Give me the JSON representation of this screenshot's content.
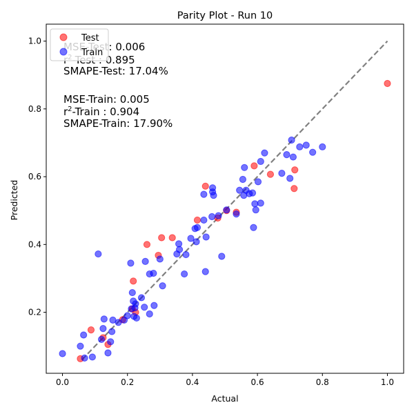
{
  "chart_data": {
    "type": "scatter",
    "title": "Parity Plot - Run 10",
    "xlabel": "Actual",
    "ylabel": "Predicted",
    "xlim": [
      -0.05,
      1.05
    ],
    "ylim": [
      0.02,
      1.05
    ],
    "x_ticks": [
      0.0,
      0.2,
      0.4,
      0.6,
      0.8,
      1.0
    ],
    "x_tick_labels": [
      "0.0",
      "0.2",
      "0.4",
      "0.6",
      "0.8",
      "1.0"
    ],
    "y_ticks": [
      0.2,
      0.4,
      0.6,
      0.8,
      1.0
    ],
    "y_tick_labels": [
      "0.2",
      "0.4",
      "0.6",
      "0.8",
      "1.0"
    ],
    "grid": false,
    "legend_position": "top-left",
    "reference_line": {
      "style": "dashed",
      "color": "#808080",
      "from": [
        0.06,
        0.06
      ],
      "to": [
        1.0,
        1.0
      ]
    },
    "annotations": [
      {
        "prefix": "MSE-Test: ",
        "value": "0.006"
      },
      {
        "prefix": "r",
        "sup": "2",
        "suffix": "-Test : ",
        "value": "0.895"
      },
      {
        "prefix": "SMAPE-Test: ",
        "value": "17.04%"
      },
      {
        "prefix": "MSE-Train: ",
        "value": "0.005"
      },
      {
        "prefix": "r",
        "sup": "2",
        "suffix": "-Train : ",
        "value": "0.904"
      },
      {
        "prefix": "SMAPE-Train: ",
        "value": "17.90%"
      }
    ],
    "series": [
      {
        "name": "Test",
        "color": "#ff0000",
        "points": [
          [
            0.055,
            0.063
          ],
          [
            0.088,
            0.148
          ],
          [
            0.125,
            0.125
          ],
          [
            0.14,
            0.105
          ],
          [
            0.185,
            0.178
          ],
          [
            0.215,
            0.21
          ],
          [
            0.218,
            0.292
          ],
          [
            0.225,
            0.2
          ],
          [
            0.26,
            0.4
          ],
          [
            0.295,
            0.368
          ],
          [
            0.305,
            0.42
          ],
          [
            0.338,
            0.42
          ],
          [
            0.415,
            0.472
          ],
          [
            0.44,
            0.572
          ],
          [
            0.478,
            0.478
          ],
          [
            0.505,
            0.5
          ],
          [
            0.535,
            0.495
          ],
          [
            0.59,
            0.632
          ],
          [
            0.64,
            0.607
          ],
          [
            0.713,
            0.565
          ],
          [
            0.715,
            0.62
          ],
          [
            1.0,
            0.875
          ]
        ]
      },
      {
        "name": "Train",
        "color": "#0000ff",
        "points": [
          [
            0.0,
            0.078
          ],
          [
            0.055,
            0.1
          ],
          [
            0.065,
            0.133
          ],
          [
            0.068,
            0.065
          ],
          [
            0.092,
            0.068
          ],
          [
            0.11,
            0.372
          ],
          [
            0.12,
            0.12
          ],
          [
            0.125,
            0.152
          ],
          [
            0.128,
            0.18
          ],
          [
            0.14,
            0.08
          ],
          [
            0.148,
            0.113
          ],
          [
            0.152,
            0.143
          ],
          [
            0.155,
            0.177
          ],
          [
            0.172,
            0.17
          ],
          [
            0.19,
            0.177
          ],
          [
            0.2,
            0.19
          ],
          [
            0.21,
            0.345
          ],
          [
            0.212,
            0.21
          ],
          [
            0.215,
            0.258
          ],
          [
            0.218,
            0.233
          ],
          [
            0.22,
            0.188
          ],
          [
            0.223,
            0.213
          ],
          [
            0.225,
            0.225
          ],
          [
            0.228,
            0.183
          ],
          [
            0.243,
            0.243
          ],
          [
            0.252,
            0.215
          ],
          [
            0.255,
            0.35
          ],
          [
            0.268,
            0.313
          ],
          [
            0.268,
            0.195
          ],
          [
            0.28,
            0.315
          ],
          [
            0.282,
            0.22
          ],
          [
            0.3,
            0.357
          ],
          [
            0.308,
            0.278
          ],
          [
            0.352,
            0.372
          ],
          [
            0.358,
            0.402
          ],
          [
            0.36,
            0.385
          ],
          [
            0.375,
            0.313
          ],
          [
            0.38,
            0.37
          ],
          [
            0.395,
            0.418
          ],
          [
            0.408,
            0.447
          ],
          [
            0.412,
            0.408
          ],
          [
            0.415,
            0.45
          ],
          [
            0.435,
            0.472
          ],
          [
            0.435,
            0.548
          ],
          [
            0.44,
            0.32
          ],
          [
            0.442,
            0.422
          ],
          [
            0.46,
            0.482
          ],
          [
            0.462,
            0.567
          ],
          [
            0.462,
            0.555
          ],
          [
            0.465,
            0.545
          ],
          [
            0.48,
            0.485
          ],
          [
            0.49,
            0.365
          ],
          [
            0.505,
            0.502
          ],
          [
            0.535,
            0.49
          ],
          [
            0.545,
            0.56
          ],
          [
            0.555,
            0.592
          ],
          [
            0.558,
            0.545
          ],
          [
            0.56,
            0.627
          ],
          [
            0.565,
            0.56
          ],
          [
            0.575,
            0.55
          ],
          [
            0.585,
            0.552
          ],
          [
            0.588,
            0.45
          ],
          [
            0.592,
            0.52
          ],
          [
            0.595,
            0.502
          ],
          [
            0.602,
            0.585
          ],
          [
            0.61,
            0.645
          ],
          [
            0.61,
            0.522
          ],
          [
            0.622,
            0.67
          ],
          [
            0.675,
            0.61
          ],
          [
            0.69,
            0.665
          ],
          [
            0.7,
            0.595
          ],
          [
            0.705,
            0.708
          ],
          [
            0.71,
            0.658
          ],
          [
            0.73,
            0.688
          ],
          [
            0.75,
            0.693
          ],
          [
            0.77,
            0.672
          ],
          [
            0.8,
            0.688
          ]
        ]
      }
    ]
  }
}
